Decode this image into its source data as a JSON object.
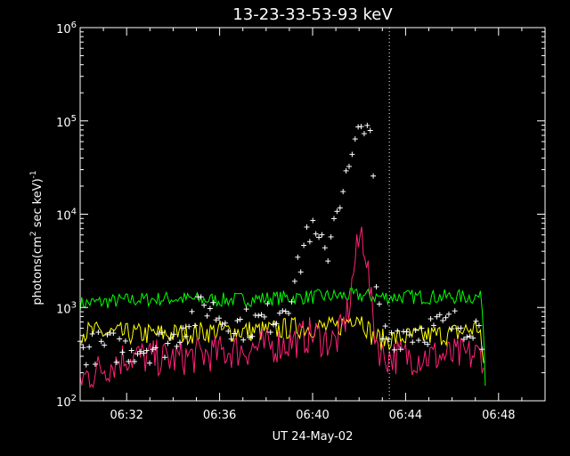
{
  "chart_data": {
    "type": "line",
    "title": "13-23-33-53-93 keV",
    "xlabel": "UT 24-May-02",
    "ylabel_main": "photons(cm",
    "ylabel_sup1": "2",
    "ylabel_mid": " sec keV)",
    "ylabel_sup2": "-1",
    "yscale": "log",
    "xlim_minutes": [
      390,
      410
    ],
    "ylim": [
      100,
      1000000
    ],
    "x_ticks": [
      {
        "m": 392,
        "label": "06:32"
      },
      {
        "m": 396,
        "label": "06:36"
      },
      {
        "m": 400,
        "label": "06:40"
      },
      {
        "m": 404,
        "label": "06:44"
      },
      {
        "m": 408,
        "label": "06:48"
      }
    ],
    "y_ticks": [
      {
        "v": 100,
        "base": "10",
        "exp": "2"
      },
      {
        "v": 1000,
        "base": "10",
        "exp": "3"
      },
      {
        "v": 10000,
        "base": "10",
        "exp": "4"
      },
      {
        "v": 100000,
        "base": "10",
        "exp": "5"
      },
      {
        "v": 1000000,
        "base": "10",
        "exp": "6"
      }
    ],
    "marker_line_minute": 403.3,
    "series": [
      {
        "color": "#00ff00",
        "style": "line",
        "noise": 0.08,
        "points": [
          [
            390,
            1100
          ],
          [
            392,
            1200
          ],
          [
            394,
            1250
          ],
          [
            396,
            1200
          ],
          [
            398,
            1250
          ],
          [
            400,
            1300
          ],
          [
            402,
            1350
          ],
          [
            403,
            1300
          ],
          [
            404,
            1300
          ],
          [
            406,
            1300
          ],
          [
            407.2,
            1300
          ],
          [
            407.3,
            1100
          ],
          [
            407.4,
            300
          ],
          [
            407.45,
            100
          ]
        ]
      },
      {
        "color": "#ffff00",
        "style": "line",
        "noise": 0.12,
        "points": [
          [
            390,
            550
          ],
          [
            392,
            520
          ],
          [
            394,
            520
          ],
          [
            396,
            560
          ],
          [
            398,
            560
          ],
          [
            399,
            600
          ],
          [
            400,
            620
          ],
          [
            401,
            600
          ],
          [
            401.6,
            750
          ],
          [
            401.9,
            850
          ],
          [
            402.2,
            700
          ],
          [
            402.6,
            480
          ],
          [
            403,
            450
          ],
          [
            404,
            480
          ],
          [
            406,
            520
          ],
          [
            407.2,
            620
          ],
          [
            407.4,
            150
          ]
        ]
      },
      {
        "color": "#ff2277",
        "style": "line",
        "noise": 0.2,
        "points": [
          [
            390,
            170
          ],
          [
            392,
            300
          ],
          [
            394,
            280
          ],
          [
            396,
            330
          ],
          [
            398,
            380
          ],
          [
            399,
            420
          ],
          [
            400,
            520
          ],
          [
            400.5,
            450
          ],
          [
            401,
            430
          ],
          [
            401.3,
            600
          ],
          [
            401.6,
            1100
          ],
          [
            401.8,
            3000
          ],
          [
            402.1,
            6500
          ],
          [
            402.3,
            4000
          ],
          [
            402.5,
            1200
          ],
          [
            402.7,
            500
          ],
          [
            403,
            300
          ],
          [
            404,
            300
          ],
          [
            406,
            300
          ],
          [
            407.3,
            310
          ],
          [
            407.4,
            250
          ]
        ]
      },
      {
        "color": "#ffffff",
        "style": "plus",
        "noise": 0.18,
        "step": 0.13,
        "points": [
          [
            390,
            350
          ],
          [
            391,
            380
          ],
          [
            392,
            370
          ],
          [
            393,
            380
          ],
          [
            394,
            450
          ],
          [
            394.5,
            700
          ],
          [
            395,
            850
          ],
          [
            395.5,
            1100
          ],
          [
            396,
            800
          ],
          [
            396.7,
            650
          ],
          [
            397.5,
            680
          ],
          [
            398.3,
            800
          ],
          [
            399,
            1300
          ],
          [
            399.4,
            2500
          ],
          [
            399.8,
            7500
          ],
          [
            400.2,
            5000
          ],
          [
            400.6,
            3500
          ],
          [
            401,
            12000
          ],
          [
            401.5,
            25000
          ],
          [
            402,
            70000
          ],
          [
            402.3,
            130000
          ],
          [
            402.6,
            30000
          ],
          [
            402.7,
            1600
          ],
          [
            403,
            500
          ],
          [
            404,
            550
          ],
          [
            405,
            600
          ],
          [
            406,
            650
          ],
          [
            407,
            700
          ],
          [
            407.3,
            450
          ]
        ]
      }
    ]
  }
}
